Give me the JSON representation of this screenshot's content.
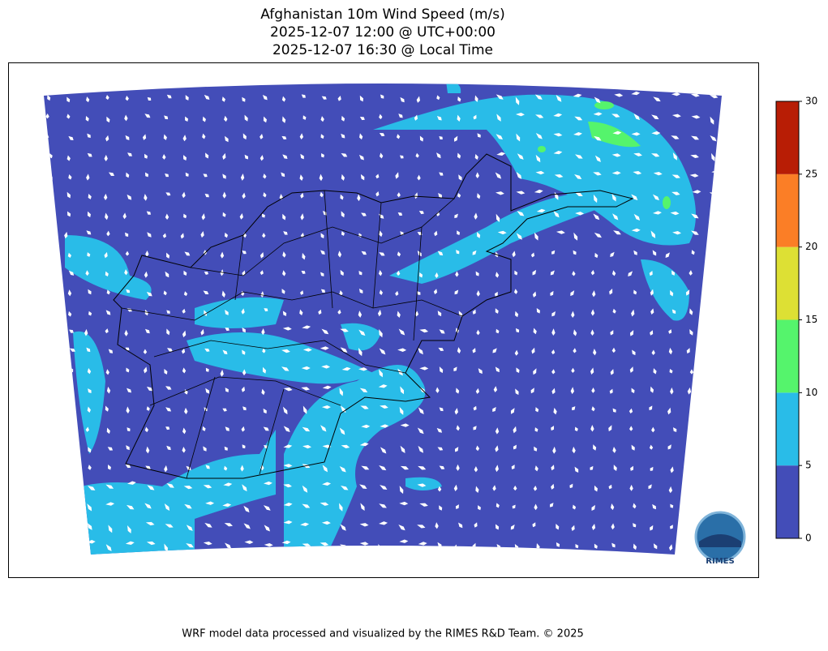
{
  "header": {
    "title": [
      "Afghanistan 10m Wind Speed (m/s)",
      "2025-12-07 12:00 @ UTC+00:00",
      "2025-12-07 16:30 @ Local Time"
    ]
  },
  "colorbar": {
    "levels": [
      0,
      5,
      10,
      15,
      20,
      25,
      30
    ],
    "colors": [
      "#434db8",
      "#29bce8",
      "#55f46c",
      "#dde034",
      "#fb7e26",
      "#b81d05"
    ]
  },
  "logo": {
    "label": "RIMES"
  },
  "footer": {
    "text": "WRF model data processed and visualized by the RIMES R&D Team. © 2025"
  }
}
